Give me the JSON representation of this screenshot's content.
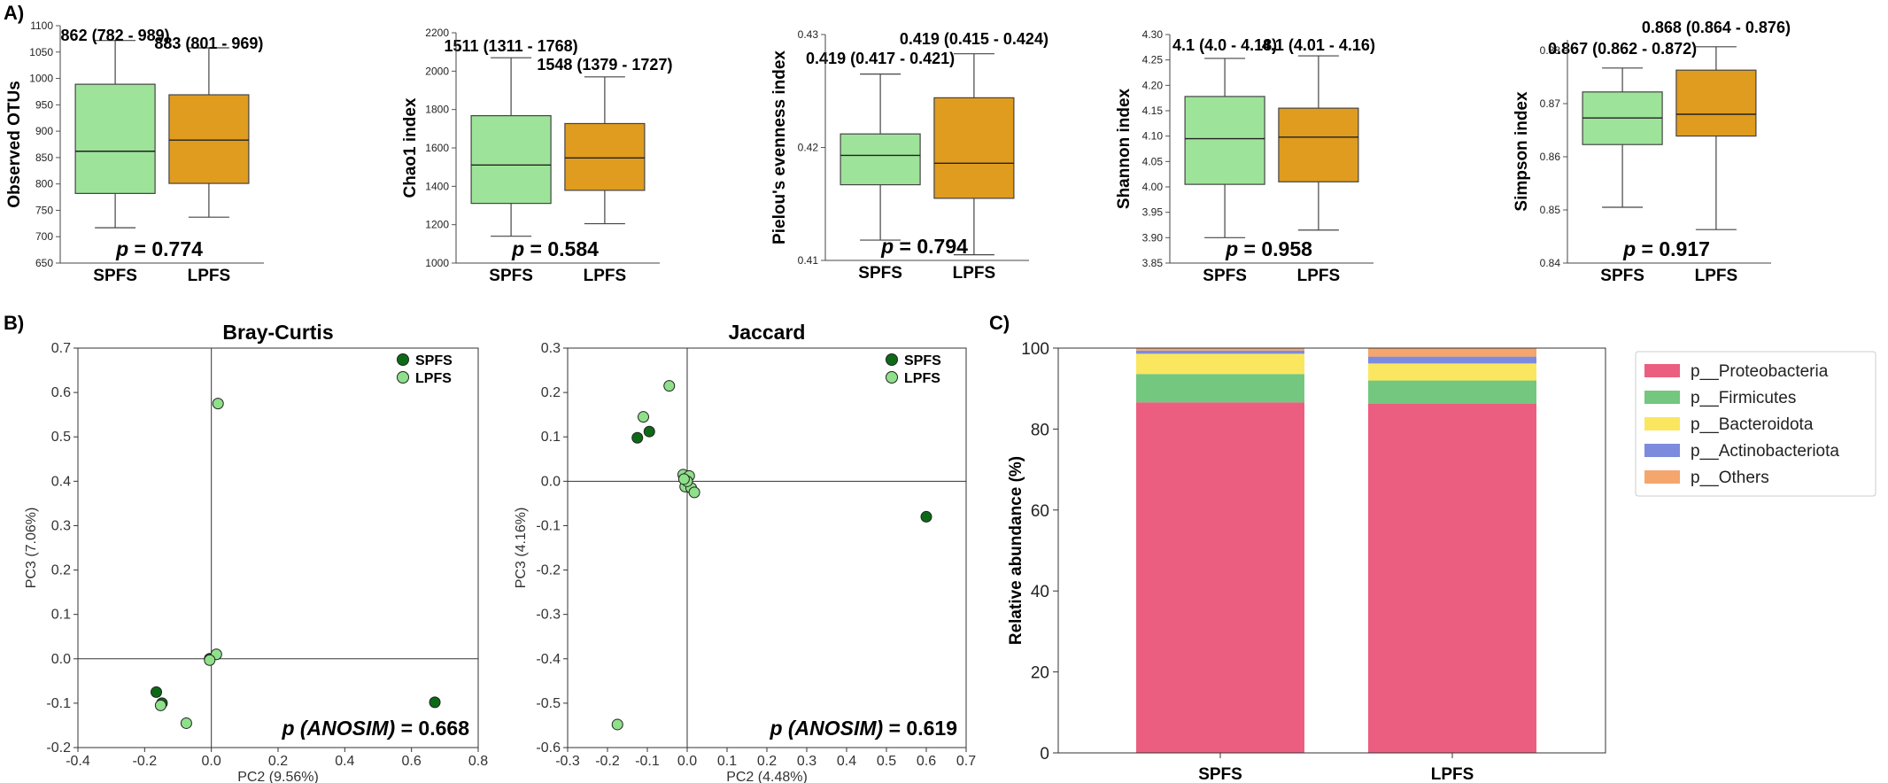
{
  "panel_labels": {
    "a": "A)",
    "b": "B)",
    "c": "C)"
  },
  "colors": {
    "SPFS_box": "#9ee39a",
    "LPFS_box": "#e09c1f",
    "SPFS_point": "#0c6a17",
    "LPFS_point": "#8fe08a"
  },
  "chart_data": [
    {
      "type": "box",
      "id": "otus",
      "ylabel": "Observed OTUs",
      "ylim": [
        650,
        1100
      ],
      "yticks": [
        650,
        700,
        750,
        800,
        850,
        900,
        950,
        1000,
        1050,
        1100
      ],
      "categories": [
        "SPFS",
        "LPFS"
      ],
      "boxes": [
        {
          "name": "SPFS",
          "whislo": 717,
          "q1": 782,
          "med": 862,
          "q3": 989,
          "whishi": 1072,
          "label": "862 (782 - 989)"
        },
        {
          "name": "LPFS",
          "whislo": 737,
          "q1": 801,
          "med": 883,
          "q3": 969,
          "whishi": 1058,
          "label": "883 (801 - 969)"
        }
      ],
      "p_prefix": "p",
      "p_text": " = 0.774"
    },
    {
      "type": "box",
      "id": "chao1",
      "ylabel": "Chao1 index",
      "ylim": [
        1000,
        2200
      ],
      "yticks": [
        1000,
        1200,
        1400,
        1600,
        1800,
        2000,
        2200
      ],
      "categories": [
        "SPFS",
        "LPFS"
      ],
      "boxes": [
        {
          "name": "SPFS",
          "whislo": 1140,
          "q1": 1311,
          "med": 1511,
          "q3": 1768,
          "whishi": 2070,
          "label": "1511 (1311 - 1768)"
        },
        {
          "name": "LPFS",
          "whislo": 1205,
          "q1": 1379,
          "med": 1548,
          "q3": 1727,
          "whishi": 1970,
          "label": "1548 (1379 - 1727)"
        }
      ],
      "p_prefix": "p",
      "p_text": " = 0.584"
    },
    {
      "type": "box",
      "id": "pielou",
      "ylabel": "Pielou's evenness index",
      "ylim": [
        0.41,
        0.43
      ],
      "yticks": [
        0.41,
        0.42,
        0.43
      ],
      "categories": [
        "SPFS",
        "LPFS"
      ],
      "boxes": [
        {
          "name": "SPFS",
          "whislo": 0.4118,
          "q1": 0.4167,
          "med": 0.4193,
          "q3": 0.4212,
          "whishi": 0.4265,
          "label": "0.419 (0.417 - 0.421)"
        },
        {
          "name": "LPFS",
          "whislo": 0.4105,
          "q1": 0.4155,
          "med": 0.4186,
          "q3": 0.4244,
          "whishi": 0.4283,
          "label": "0.419 (0.415 - 0.424)"
        }
      ],
      "p_prefix": "p",
      "p_text": "  = 0.794"
    },
    {
      "type": "box",
      "id": "shannon",
      "ylabel": "Shannon index",
      "ylim": [
        3.85,
        4.3
      ],
      "yticks": [
        3.85,
        3.9,
        3.95,
        4.0,
        4.05,
        4.1,
        4.15,
        4.2,
        4.25,
        4.3
      ],
      "categories": [
        "SPFS",
        "LPFS"
      ],
      "boxes": [
        {
          "name": "SPFS",
          "whislo": 3.9,
          "q1": 4.005,
          "med": 4.095,
          "q3": 4.178,
          "whishi": 4.253,
          "label": "4.1 (4.0 - 4.18)"
        },
        {
          "name": "LPFS",
          "whislo": 3.915,
          "q1": 4.01,
          "med": 4.098,
          "q3": 4.155,
          "whishi": 4.258,
          "label": "4.1 (4.01 - 4.16)"
        }
      ],
      "p_prefix": "p",
      "p_text": " = 0.958"
    },
    {
      "type": "box",
      "id": "simpson",
      "ylabel": "Simpson index",
      "ylim": [
        0.84,
        0.882
      ],
      "yticks": [
        0.84,
        0.85,
        0.86,
        0.87,
        0.88
      ],
      "categories": [
        "SPFS",
        "LPFS"
      ],
      "boxes": [
        {
          "name": "SPFS",
          "whislo": 0.8505,
          "q1": 0.8623,
          "med": 0.8673,
          "q3": 0.8722,
          "whishi": 0.8767,
          "label": "0.867 (0.862 - 0.872)"
        },
        {
          "name": "LPFS",
          "whislo": 0.8463,
          "q1": 0.8639,
          "med": 0.868,
          "q3": 0.8763,
          "whishi": 0.8807,
          "label": "0.868 (0.864 - 0.876)"
        }
      ],
      "p_prefix": "p",
      "p_text": " = 0.917"
    },
    {
      "type": "scatter",
      "id": "bray",
      "title": "Bray-Curtis",
      "xlabel": "PC2 (9.56%)",
      "ylabel": "PC3 (7.06%)",
      "xlim": [
        -0.4,
        0.8
      ],
      "ylim": [
        -0.2,
        0.7
      ],
      "xticks": [
        -0.4,
        -0.2,
        0.0,
        0.2,
        0.4,
        0.6,
        0.8
      ],
      "yticks": [
        -0.2,
        -0.1,
        0.0,
        0.1,
        0.2,
        0.3,
        0.4,
        0.5,
        0.6,
        0.7
      ],
      "series": [
        {
          "name": "SPFS",
          "points": [
            [
              -0.165,
              -0.075
            ],
            [
              -0.148,
              -0.1
            ],
            [
              -0.005,
              0.0
            ],
            [
              0.67,
              -0.098
            ]
          ]
        },
        {
          "name": "LPFS",
          "points": [
            [
              0.02,
              0.575
            ],
            [
              0.015,
              0.01
            ],
            [
              -0.005,
              -0.003
            ],
            [
              -0.152,
              -0.105
            ],
            [
              -0.075,
              -0.145
            ]
          ]
        }
      ],
      "annotation_prefix": "p (ANOSIM)",
      "annotation_value": " = 0.668"
    },
    {
      "type": "scatter",
      "id": "jaccard",
      "title": "Jaccard",
      "xlabel": "PC2 (4.48%)",
      "ylabel": "PC3 (4.16%)",
      "xlim": [
        -0.3,
        0.7
      ],
      "ylim": [
        -0.6,
        0.3
      ],
      "xticks": [
        -0.3,
        -0.2,
        -0.1,
        0.0,
        0.1,
        0.2,
        0.3,
        0.4,
        0.5,
        0.6,
        0.7
      ],
      "yticks": [
        -0.6,
        -0.5,
        -0.4,
        -0.3,
        -0.2,
        -0.1,
        0.0,
        0.1,
        0.2,
        0.3
      ],
      "series": [
        {
          "name": "SPFS",
          "points": [
            [
              -0.125,
              0.098
            ],
            [
              -0.095,
              0.112
            ],
            [
              0.6,
              -0.08
            ],
            [
              -0.005,
              0.005
            ]
          ]
        },
        {
          "name": "LPFS",
          "points": [
            [
              -0.045,
              0.215
            ],
            [
              -0.11,
              0.145
            ],
            [
              -0.175,
              -0.548
            ],
            [
              -0.01,
              0.015
            ],
            [
              0.005,
              0.012
            ],
            [
              -0.005,
              -0.012
            ],
            [
              0.01,
              -0.015
            ],
            [
              0.018,
              -0.025
            ],
            [
              0.0,
              0.0
            ],
            [
              -0.008,
              0.005
            ]
          ]
        }
      ],
      "annotation_prefix": "p (ANOSIM)",
      "annotation_value": " = 0.619"
    },
    {
      "type": "bar",
      "id": "abundance",
      "stacked": true,
      "ylabel": "Relative abundance (%)",
      "ylim": [
        0,
        100
      ],
      "yticks": [
        0,
        20,
        40,
        60,
        80,
        100
      ],
      "categories": [
        "SPFS",
        "LPFS"
      ],
      "legend_position": "right",
      "series": [
        {
          "name": "p__Proteobacteria",
          "color": "#eb5e7f",
          "values": [
            86.6,
            86.3
          ]
        },
        {
          "name": "p__Firmicutes",
          "color": "#74c77e",
          "values": [
            7.0,
            5.7
          ]
        },
        {
          "name": "p__Bacteroidota",
          "color": "#fae75f",
          "values": [
            5.0,
            4.2
          ]
        },
        {
          "name": "p__Actinobacteriota",
          "color": "#7d8bdd",
          "values": [
            0.8,
            1.7
          ]
        },
        {
          "name": "p__Others",
          "color": "#f5a66c",
          "values": [
            0.6,
            2.1
          ]
        }
      ]
    }
  ]
}
